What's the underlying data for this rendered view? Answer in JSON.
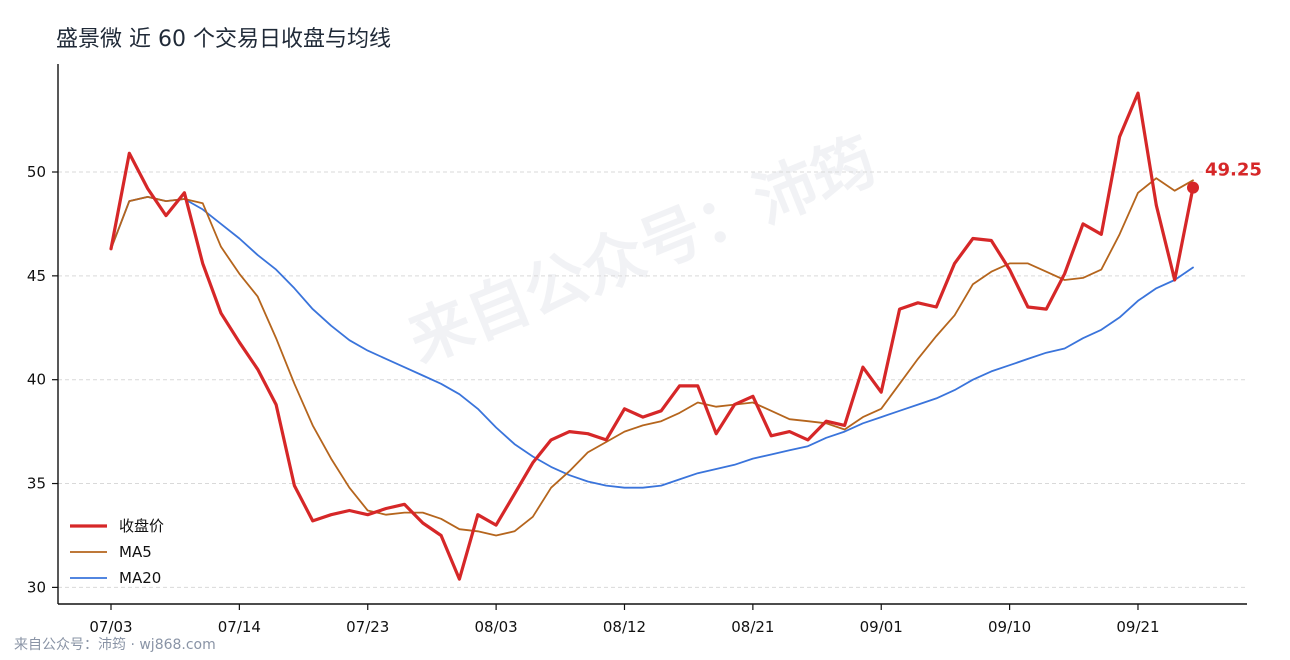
{
  "title": "盛景微 近 60 个交易日收盘与均线",
  "watermark": "来自公众号：沛筠",
  "footer": "来自公众号：沛筠 · wj868.com",
  "last_label": "49.25",
  "colors": {
    "close": "#d62728",
    "ma5": "#b5651d",
    "ma20": "#3a74db",
    "grid": "#d9d9d9",
    "axis": "#111111"
  },
  "chart_data": {
    "type": "line",
    "title": "盛景微 近 60 个交易日收盘与均线",
    "x_tick_labels": [
      "07/03",
      "07/14",
      "07/23",
      "08/03",
      "08/12",
      "08/21",
      "09/01",
      "09/10",
      "09/21"
    ],
    "x_tick_index": [
      0,
      7,
      14,
      21,
      28,
      35,
      42,
      49,
      56
    ],
    "y_ticks": [
      30,
      35,
      40,
      45,
      50
    ],
    "ylim": [
      29.2,
      55.2
    ],
    "grid": "horizontal dashed",
    "legend_position": "bottom-left",
    "series": [
      {
        "name": "收盘价",
        "color": "#d62728",
        "values": [
          46.3,
          50.9,
          49.2,
          47.9,
          49.0,
          45.6,
          43.2,
          41.8,
          40.5,
          38.8,
          34.9,
          33.2,
          33.5,
          33.7,
          33.5,
          33.8,
          34.0,
          33.1,
          32.5,
          30.4,
          33.5,
          33.0,
          34.5,
          36.0,
          37.1,
          37.5,
          37.4,
          37.1,
          38.6,
          38.2,
          38.5,
          39.7,
          39.7,
          37.4,
          38.8,
          39.2,
          37.3,
          37.5,
          37.1,
          38.0,
          37.8,
          40.6,
          39.4,
          43.4,
          43.7,
          43.5,
          45.6,
          46.8,
          46.7,
          45.3,
          43.5,
          43.4,
          45.1,
          47.5,
          47.0,
          51.7,
          53.8,
          48.4,
          44.8,
          49.25
        ]
      },
      {
        "name": "MA5",
        "color": "#b5651d",
        "values": [
          46.3,
          48.6,
          48.8,
          48.6,
          48.7,
          48.5,
          46.4,
          45.1,
          44.0,
          42.0,
          39.8,
          37.8,
          36.2,
          34.8,
          33.7,
          33.5,
          33.6,
          33.6,
          33.3,
          32.8,
          32.7,
          32.5,
          32.7,
          33.4,
          34.8,
          35.6,
          36.5,
          37.0,
          37.5,
          37.8,
          38.0,
          38.4,
          38.9,
          38.7,
          38.8,
          38.9,
          38.5,
          38.1,
          38.0,
          37.9,
          37.6,
          38.2,
          38.6,
          39.8,
          41.0,
          42.1,
          43.1,
          44.6,
          45.2,
          45.6,
          45.6,
          45.2,
          44.8,
          44.9,
          45.3,
          47.0,
          49.0,
          49.7,
          49.1,
          49.6
        ]
      },
      {
        "name": "MA20",
        "color": "#3a74db",
        "values": [
          46.3,
          48.6,
          48.8,
          48.6,
          48.7,
          48.2,
          47.5,
          46.8,
          46.0,
          45.3,
          44.4,
          43.4,
          42.6,
          41.9,
          41.4,
          41.0,
          40.6,
          40.2,
          39.8,
          39.3,
          38.6,
          37.7,
          36.9,
          36.3,
          35.8,
          35.4,
          35.1,
          34.9,
          34.8,
          34.8,
          34.9,
          35.2,
          35.5,
          35.7,
          35.9,
          36.2,
          36.4,
          36.6,
          36.8,
          37.2,
          37.5,
          37.9,
          38.2,
          38.5,
          38.8,
          39.1,
          39.5,
          40.0,
          40.4,
          40.7,
          41.0,
          41.3,
          41.5,
          42.0,
          42.4,
          43.0,
          43.8,
          44.4,
          44.8,
          45.4
        ]
      }
    ]
  }
}
